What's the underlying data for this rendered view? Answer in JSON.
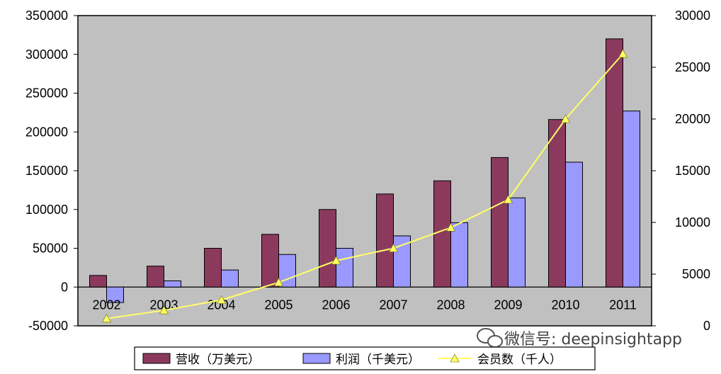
{
  "chart_data": {
    "type": "bar",
    "categories": [
      "2002",
      "2003",
      "2004",
      "2005",
      "2006",
      "2007",
      "2008",
      "2009",
      "2010",
      "2011"
    ],
    "series": [
      {
        "name": "营收（万美元）",
        "axis": "left",
        "type": "bar",
        "color": "#8B3A5E",
        "values": [
          15000,
          27000,
          50000,
          68000,
          100000,
          120000,
          137000,
          167000,
          216000,
          320000
        ]
      },
      {
        "name": "利润（千美元）",
        "axis": "left",
        "type": "bar",
        "color": "#9999FF",
        "values": [
          -20000,
          8000,
          22000,
          42000,
          50000,
          66000,
          83000,
          115000,
          161000,
          227000
        ]
      },
      {
        "name": "会员数（千人）",
        "axis": "right",
        "type": "line",
        "color": "#FFFF66",
        "values": [
          700,
          1500,
          2500,
          4200,
          6300,
          7500,
          9500,
          12200,
          20000,
          26300
        ]
      }
    ],
    "y_left": {
      "min": -50000,
      "max": 350000,
      "ticks": [
        "350000",
        "300000",
        "250000",
        "200000",
        "150000",
        "100000",
        "50000",
        "0",
        "-50000"
      ]
    },
    "y_right": {
      "min": 0,
      "max": 30000,
      "ticks": [
        "30000",
        "25000",
        "20000",
        "15000",
        "10000",
        "5000",
        "0"
      ]
    },
    "plot_background": "#C0C0C0",
    "grid": false,
    "legend_position": "bottom"
  },
  "watermark": {
    "text": "微信号: deepinsightapp"
  }
}
